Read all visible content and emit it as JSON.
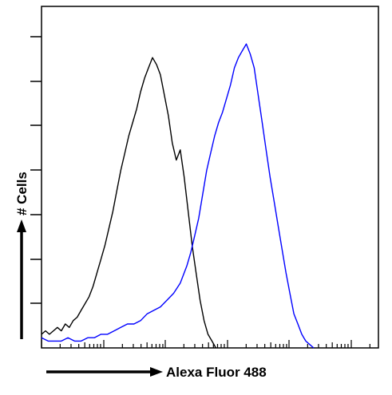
{
  "chart_data": {
    "type": "line",
    "xlabel": "Alexa Fluor 488",
    "ylabel": "# Cells",
    "x_scale": "log",
    "xlim": [
      0,
      255
    ],
    "ylim": [
      0,
      100
    ],
    "grid": false,
    "legend": "none",
    "series": [
      {
        "color": "#000000",
        "x": [
          0,
          3,
          6,
          9,
          12,
          15,
          18,
          21,
          24,
          27,
          30,
          33,
          36,
          39,
          42,
          45,
          48,
          51,
          54,
          57,
          60,
          63,
          66,
          69,
          72,
          75,
          78,
          81,
          84,
          87,
          90,
          93,
          96,
          99,
          102,
          105,
          108,
          111,
          114,
          117,
          120,
          123,
          126,
          129,
          132
        ],
        "y": [
          4,
          5,
          4,
          5,
          6,
          5,
          7,
          6,
          8,
          9,
          11,
          13,
          15,
          18,
          22,
          26,
          30,
          35,
          40,
          46,
          52,
          57,
          62,
          66,
          70,
          75,
          79,
          82,
          85,
          83,
          80,
          74,
          68,
          60,
          55,
          58,
          50,
          40,
          30,
          22,
          14,
          8,
          4,
          2,
          0
        ]
      },
      {
        "color": "#0000ff",
        "x": [
          0,
          5,
          10,
          15,
          20,
          25,
          30,
          35,
          40,
          45,
          50,
          55,
          60,
          65,
          70,
          75,
          80,
          85,
          90,
          95,
          100,
          105,
          110,
          113,
          116,
          119,
          122,
          125,
          128,
          131,
          134,
          137,
          140,
          143,
          146,
          149,
          152,
          155,
          158,
          161,
          164,
          167,
          170,
          173,
          176,
          179,
          182,
          185,
          188,
          191,
          194,
          197,
          200,
          203,
          206
        ],
        "y": [
          3,
          2,
          2,
          2,
          3,
          2,
          2,
          3,
          3,
          4,
          4,
          5,
          6,
          7,
          7,
          8,
          10,
          11,
          12,
          14,
          16,
          19,
          24,
          28,
          33,
          38,
          45,
          52,
          57,
          62,
          66,
          69,
          73,
          77,
          82,
          85,
          87,
          89,
          86,
          82,
          74,
          66,
          58,
          50,
          43,
          36,
          29,
          22,
          16,
          10,
          7,
          4,
          2,
          1,
          0
        ]
      }
    ]
  }
}
